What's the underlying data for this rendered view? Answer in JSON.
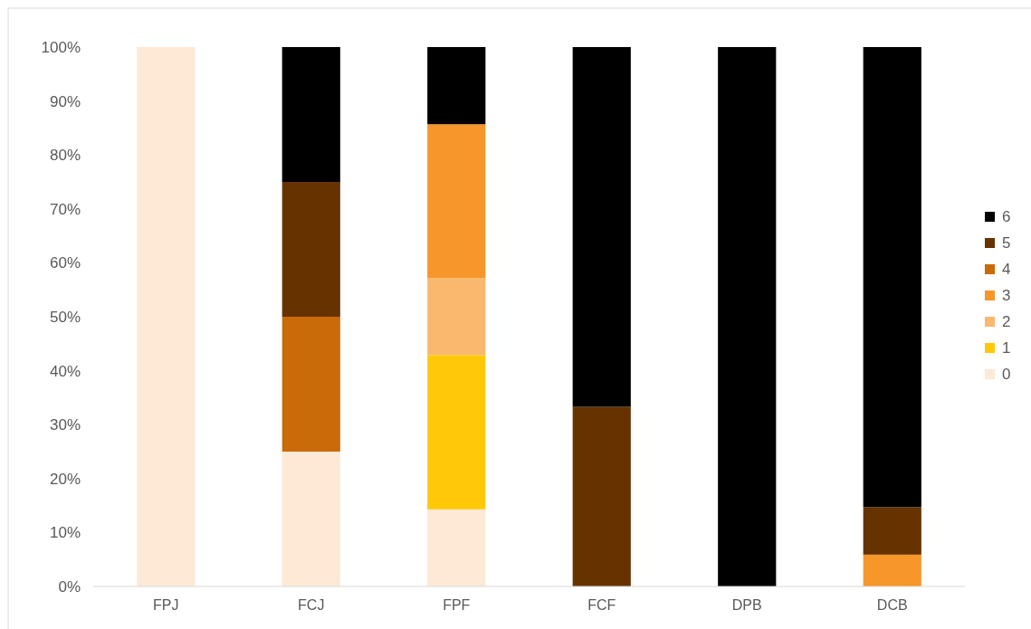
{
  "chart_data": {
    "type": "bar",
    "stacked": true,
    "categories": [
      "FPJ",
      "FCJ",
      "FPF",
      "FCF",
      "DPB",
      "DCB"
    ],
    "series": [
      {
        "name": "0",
        "color": "#fde9d5",
        "values": [
          100,
          25,
          14.3,
          null,
          null,
          null
        ]
      },
      {
        "name": "1",
        "color": "#ffc90a",
        "values": [
          null,
          null,
          28.6,
          null,
          null,
          null
        ]
      },
      {
        "name": "2",
        "color": "#fab86f",
        "values": [
          null,
          null,
          14.3,
          null,
          null,
          null
        ]
      },
      {
        "name": "3",
        "color": "#f7962b",
        "values": [
          null,
          null,
          28.5,
          null,
          null,
          5.9
        ]
      },
      {
        "name": "4",
        "color": "#c86b08",
        "values": [
          null,
          25,
          null,
          null,
          null,
          null
        ]
      },
      {
        "name": "5",
        "color": "#663300",
        "values": [
          null,
          25,
          null,
          33.3,
          null,
          8.8
        ]
      },
      {
        "name": "6",
        "color": "#000000",
        "values": [
          null,
          25,
          14.3,
          66.7,
          100,
          85.3
        ]
      }
    ],
    "ylim": [
      0,
      100
    ],
    "yticks": [
      {
        "value": 0,
        "label": "0%"
      },
      {
        "value": 10,
        "label": "10%"
      },
      {
        "value": 20,
        "label": "20%"
      },
      {
        "value": 30,
        "label": "30%"
      },
      {
        "value": 40,
        "label": "40%"
      },
      {
        "value": 50,
        "label": "50%"
      },
      {
        "value": 60,
        "label": "60%"
      },
      {
        "value": 70,
        "label": "70%"
      },
      {
        "value": 80,
        "label": "80%"
      },
      {
        "value": 90,
        "label": "90%"
      },
      {
        "value": 100,
        "label": "100%"
      }
    ],
    "grid": false,
    "legend": "right"
  }
}
